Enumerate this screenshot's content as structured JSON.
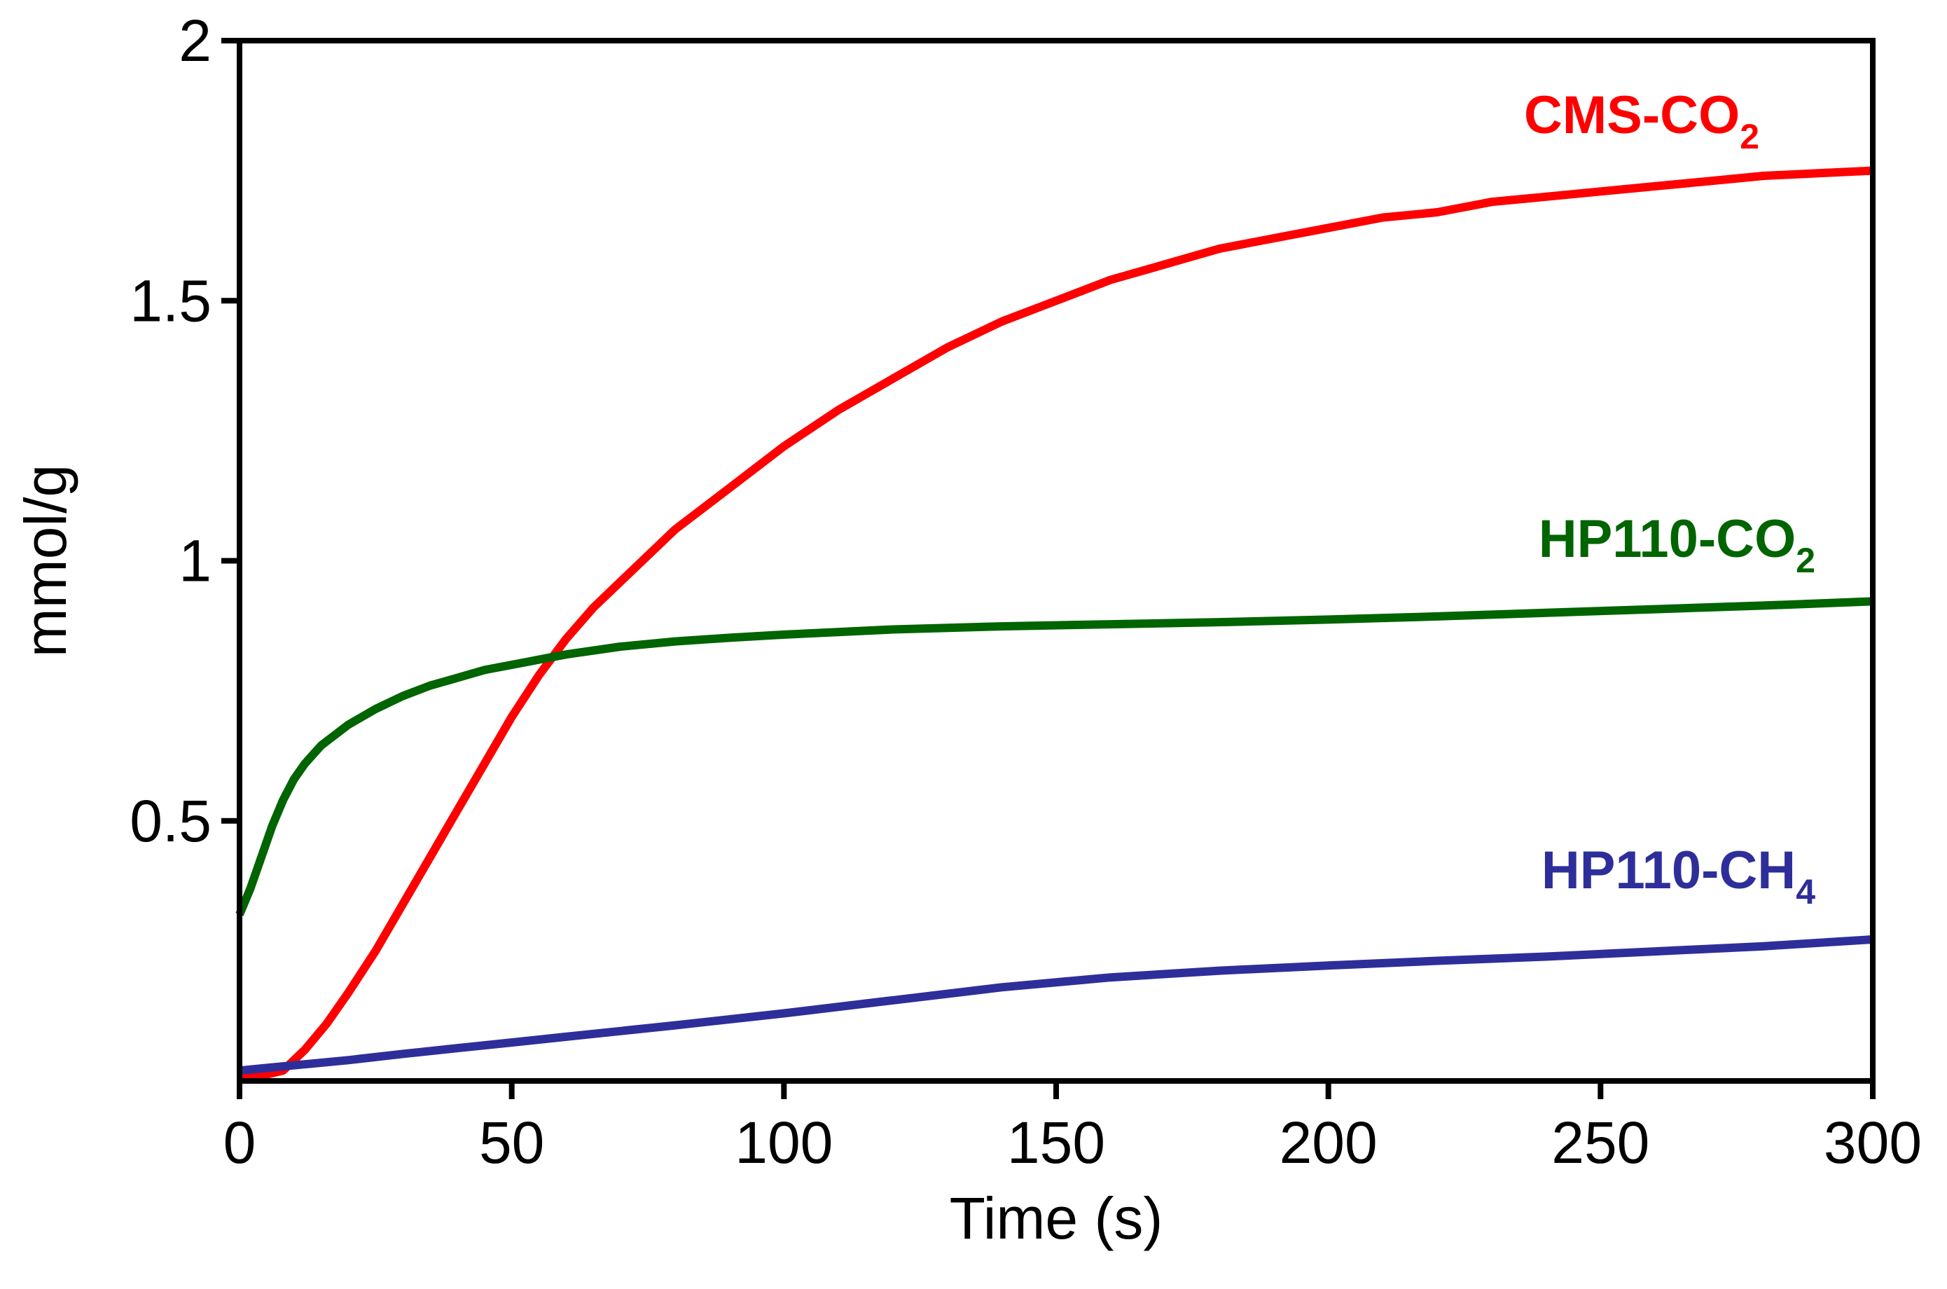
{
  "chart_data": {
    "type": "line",
    "title": "",
    "xlabel": "Time (s)",
    "ylabel": "mmol/g",
    "xlim": [
      0,
      300
    ],
    "ylim": [
      0,
      2
    ],
    "xticks": [
      0,
      50,
      100,
      150,
      200,
      250,
      300
    ],
    "xtick_labels": [
      "0",
      "50",
      "100",
      "150",
      "200",
      "250",
      "300"
    ],
    "yticks": [
      0.5,
      1,
      1.5,
      2
    ],
    "ytick_labels": [
      "0.5",
      "1",
      "1.5",
      "2"
    ],
    "grid": false,
    "legend": "inline labels at right",
    "series": [
      {
        "name": "CMS-CO2",
        "label_main": "CMS-CO",
        "label_sub": "2",
        "color": "#ff0000",
        "x": [
          0,
          4,
          8,
          12,
          16,
          20,
          25,
          30,
          35,
          40,
          45,
          50,
          55,
          60,
          65,
          70,
          80,
          90,
          100,
          110,
          120,
          130,
          140,
          150,
          160,
          170,
          180,
          190,
          200,
          210,
          220,
          230,
          240,
          250,
          260,
          270,
          280,
          290,
          300
        ],
        "y": [
          0.01,
          0.01,
          0.02,
          0.06,
          0.11,
          0.17,
          0.25,
          0.34,
          0.43,
          0.52,
          0.61,
          0.7,
          0.78,
          0.85,
          0.91,
          0.96,
          1.06,
          1.14,
          1.22,
          1.29,
          1.35,
          1.41,
          1.46,
          1.5,
          1.54,
          1.57,
          1.6,
          1.62,
          1.64,
          1.66,
          1.67,
          1.69,
          1.7,
          1.71,
          1.72,
          1.73,
          1.74,
          1.745,
          1.75
        ]
      },
      {
        "name": "HP110-CO2",
        "label_main": "HP110-CO",
        "label_sub": "2",
        "color": "#006400",
        "x": [
          0,
          2,
          4,
          6,
          8,
          10,
          12,
          15,
          20,
          25,
          30,
          35,
          40,
          45,
          50,
          60,
          70,
          80,
          90,
          100,
          120,
          140,
          160,
          180,
          200,
          220,
          240,
          260,
          280,
          300
        ],
        "y": [
          0.32,
          0.37,
          0.43,
          0.49,
          0.54,
          0.58,
          0.61,
          0.645,
          0.685,
          0.715,
          0.74,
          0.76,
          0.775,
          0.79,
          0.8,
          0.82,
          0.835,
          0.845,
          0.852,
          0.858,
          0.868,
          0.874,
          0.878,
          0.882,
          0.887,
          0.893,
          0.9,
          0.907,
          0.914,
          0.922
        ]
      },
      {
        "name": "HP110-CH4",
        "label_main": "HP110-CH",
        "label_sub": "4",
        "color": "#2e2e9a",
        "x": [
          0,
          10,
          20,
          30,
          40,
          50,
          60,
          80,
          100,
          120,
          140,
          160,
          180,
          200,
          220,
          240,
          260,
          280,
          300
        ],
        "y": [
          0.02,
          0.03,
          0.04,
          0.052,
          0.063,
          0.074,
          0.085,
          0.107,
          0.13,
          0.155,
          0.18,
          0.199,
          0.212,
          0.222,
          0.231,
          0.239,
          0.249,
          0.259,
          0.272
        ]
      }
    ]
  }
}
